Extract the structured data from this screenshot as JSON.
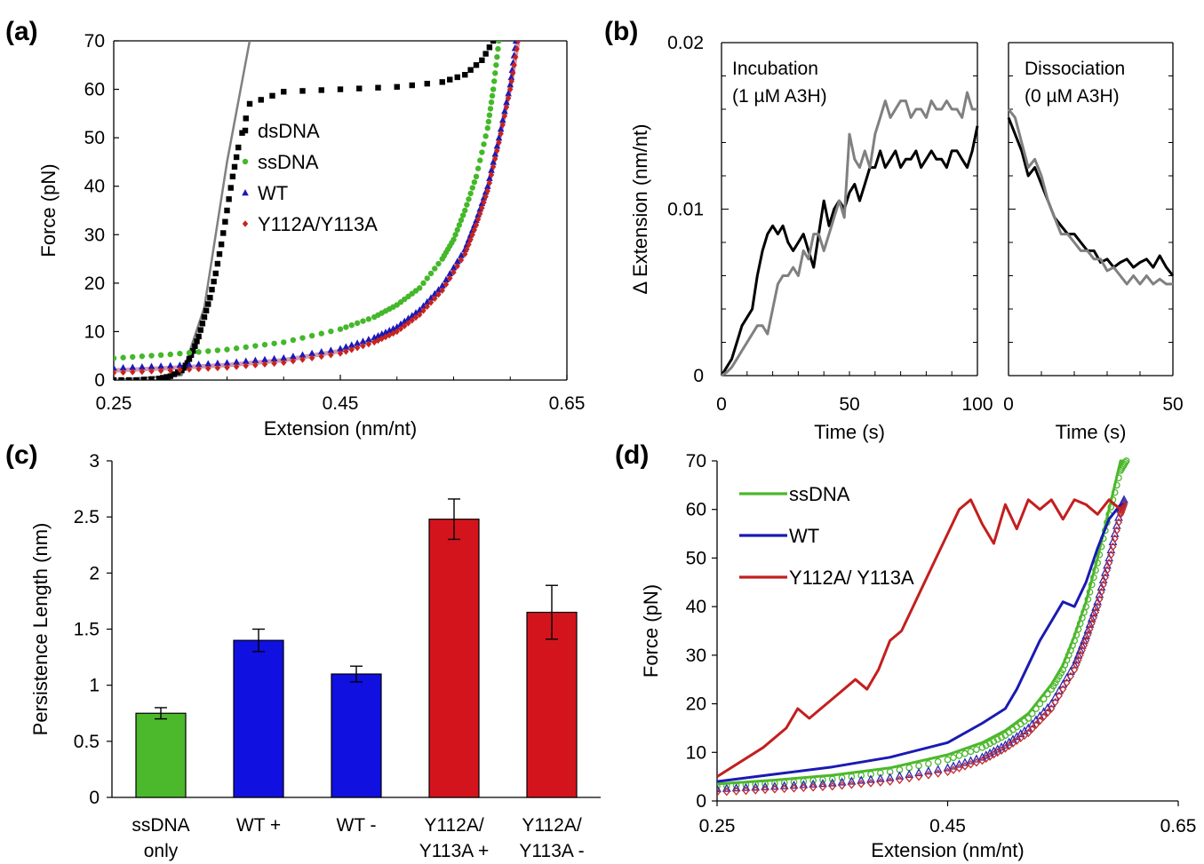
{
  "panels": {
    "a": {
      "label": "(a)"
    },
    "b": {
      "label": "(b)"
    },
    "c": {
      "label": "(c)"
    },
    "d": {
      "label": "(d)"
    }
  },
  "chart_data": [
    {
      "id": "a",
      "type": "scatter",
      "xlabel": "Extension (nm/nt)",
      "ylabel": "Force (pN)",
      "xlim": [
        0.25,
        0.65
      ],
      "ylim": [
        0,
        70
      ],
      "xticks": [
        "0.25",
        "0.45",
        "0.65"
      ],
      "yticks": [
        "0",
        "10",
        "20",
        "30",
        "40",
        "50",
        "60",
        "70"
      ],
      "legend": "center",
      "series": [
        {
          "name": "dsDNA",
          "color": "#000000",
          "marker": "square",
          "x": [
            0.25,
            0.27,
            0.29,
            0.3,
            0.31,
            0.315,
            0.32,
            0.325,
            0.33,
            0.335,
            0.34,
            0.345,
            0.35,
            0.355,
            0.36,
            0.37,
            0.4,
            0.45,
            0.5,
            0.54,
            0.56,
            0.575,
            0.585
          ],
          "y": [
            0,
            0,
            0.3,
            0.8,
            2,
            3.5,
            6,
            9,
            13,
            17,
            22,
            28,
            35,
            42,
            48,
            57,
            59.5,
            60,
            60.5,
            61.5,
            63,
            66,
            70
          ]
        },
        {
          "name": "ssDNA",
          "color": "#44b82a",
          "marker": "circle",
          "x": [
            0.25,
            0.3,
            0.35,
            0.4,
            0.45,
            0.48,
            0.5,
            0.52,
            0.54,
            0.55,
            0.56,
            0.57,
            0.58,
            0.585,
            0.59
          ],
          "y": [
            4.5,
            5.3,
            6.3,
            7.8,
            10.5,
            13,
            15.5,
            19,
            25,
            29,
            35,
            42,
            52,
            60,
            70
          ]
        },
        {
          "name": "WT",
          "color": "#1a1ab8",
          "marker": "triangle",
          "x": [
            0.25,
            0.3,
            0.35,
            0.4,
            0.45,
            0.48,
            0.5,
            0.52,
            0.54,
            0.56,
            0.57,
            0.58,
            0.59,
            0.6,
            0.605
          ],
          "y": [
            2.5,
            3,
            3.6,
            4.6,
            6.5,
            8.8,
            11,
            14.5,
            19.5,
            27,
            33,
            40,
            50,
            61,
            70
          ]
        },
        {
          "name": "Y112A/Y113A",
          "color": "#c8231e",
          "marker": "diamond",
          "x": [
            0.25,
            0.3,
            0.35,
            0.4,
            0.45,
            0.48,
            0.5,
            0.52,
            0.54,
            0.56,
            0.57,
            0.58,
            0.59,
            0.6,
            0.607
          ],
          "y": [
            1.5,
            2,
            2.6,
            3.6,
            5.5,
            7.8,
            10,
            13.5,
            18.5,
            26,
            32,
            39,
            49,
            60,
            70
          ]
        }
      ],
      "fits": [
        {
          "color": "#808080",
          "x": [
            0.25,
            0.31,
            0.33,
            0.35,
            0.37
          ],
          "y": [
            0,
            1,
            15,
            45,
            70
          ]
        },
        {
          "color": "#d59bb0",
          "x": [
            0.25,
            0.3,
            0.35,
            0.4,
            0.45,
            0.48,
            0.5,
            0.52,
            0.54,
            0.56,
            0.57,
            0.58,
            0.59,
            0.6,
            0.607
          ],
          "y": [
            2,
            2.5,
            3.1,
            4.1,
            6,
            8.3,
            10.5,
            14,
            19,
            26.5,
            32.5,
            39.5,
            49.5,
            60.5,
            70
          ]
        }
      ]
    },
    {
      "id": "b",
      "type": "line",
      "ylabel": "Δ Extension (nm/nt)",
      "ylim": [
        0,
        0.02
      ],
      "yticks": [
        "0",
        "0.01",
        "0.02"
      ],
      "subplots": [
        {
          "annotation": [
            "Incubation",
            "(1 µM A3H)"
          ],
          "xlabel": "Time (s)",
          "xlim": [
            0,
            100
          ],
          "xticks": [
            "0",
            "50",
            "100"
          ],
          "series": [
            {
              "color": "#000000",
              "x": [
                0,
                2,
                4,
                6,
                8,
                10,
                12,
                14,
                16,
                18,
                20,
                22,
                24,
                26,
                28,
                30,
                32,
                34,
                36,
                38,
                40,
                42,
                44,
                46,
                48,
                50,
                52,
                54,
                56,
                58,
                60,
                62,
                64,
                66,
                68,
                70,
                72,
                74,
                76,
                78,
                80,
                82,
                84,
                86,
                88,
                90,
                92,
                94,
                96,
                98,
                100
              ],
              "y": [
                0,
                0.0005,
                0.001,
                0.002,
                0.003,
                0.0035,
                0.004,
                0.006,
                0.0075,
                0.0085,
                0.009,
                0.0085,
                0.009,
                0.008,
                0.0075,
                0.008,
                0.0085,
                0.0075,
                0.0065,
                0.0085,
                0.0105,
                0.009,
                0.01,
                0.0105,
                0.01,
                0.011,
                0.0115,
                0.0105,
                0.0115,
                0.0125,
                0.0125,
                0.0135,
                0.0125,
                0.013,
                0.0135,
                0.0125,
                0.013,
                0.013,
                0.0135,
                0.0125,
                0.013,
                0.0135,
                0.013,
                0.013,
                0.0125,
                0.0135,
                0.0135,
                0.013,
                0.0125,
                0.0135,
                0.015
              ]
            },
            {
              "color": "#808080",
              "x": [
                0,
                2,
                4,
                6,
                8,
                10,
                12,
                14,
                16,
                18,
                20,
                22,
                24,
                26,
                28,
                30,
                32,
                34,
                36,
                38,
                40,
                42,
                44,
                46,
                48,
                50,
                52,
                54,
                56,
                58,
                60,
                62,
                64,
                66,
                68,
                70,
                72,
                74,
                76,
                78,
                80,
                82,
                84,
                86,
                88,
                90,
                92,
                94,
                96,
                98,
                100
              ],
              "y": [
                0,
                0.0002,
                0.0005,
                0.001,
                0.0015,
                0.002,
                0.0025,
                0.003,
                0.003,
                0.0025,
                0.004,
                0.0055,
                0.006,
                0.006,
                0.0065,
                0.006,
                0.0075,
                0.007,
                0.0085,
                0.0085,
                0.0075,
                0.0085,
                0.0095,
                0.0105,
                0.0095,
                0.0145,
                0.013,
                0.0125,
                0.0135,
                0.0125,
                0.0145,
                0.0155,
                0.0165,
                0.0155,
                0.016,
                0.0165,
                0.0165,
                0.0155,
                0.016,
                0.016,
                0.0155,
                0.0165,
                0.016,
                0.016,
                0.0165,
                0.016,
                0.016,
                0.0155,
                0.017,
                0.016,
                0.016
              ]
            }
          ]
        },
        {
          "annotation": [
            "Dissociation",
            "(0 µM A3H)"
          ],
          "xlabel": "Time (s)",
          "xlim": [
            0,
            50
          ],
          "xticks": [
            "0",
            "50"
          ],
          "series": [
            {
              "color": "#000000",
              "x": [
                0,
                2,
                4,
                6,
                8,
                10,
                12,
                14,
                16,
                18,
                20,
                22,
                24,
                26,
                28,
                30,
                32,
                34,
                36,
                38,
                40,
                42,
                44,
                46,
                48,
                50
              ],
              "y": [
                0.0155,
                0.0145,
                0.0135,
                0.012,
                0.0125,
                0.0115,
                0.0105,
                0.0095,
                0.009,
                0.0085,
                0.0085,
                0.008,
                0.0075,
                0.0075,
                0.0068,
                0.007,
                0.0065,
                0.0068,
                0.007,
                0.0065,
                0.0068,
                0.007,
                0.0065,
                0.0072,
                0.0065,
                0.006
              ]
            },
            {
              "color": "#808080",
              "x": [
                0,
                2,
                4,
                6,
                8,
                10,
                12,
                14,
                16,
                18,
                20,
                22,
                24,
                26,
                28,
                30,
                32,
                34,
                36,
                38,
                40,
                42,
                44,
                46,
                48,
                50
              ],
              "y": [
                0.016,
                0.0155,
                0.014,
                0.0125,
                0.013,
                0.012,
                0.0105,
                0.0095,
                0.0085,
                0.0085,
                0.008,
                0.0075,
                0.0075,
                0.007,
                0.007,
                0.0063,
                0.0065,
                0.006,
                0.0055,
                0.006,
                0.0055,
                0.006,
                0.0055,
                0.0058,
                0.0055,
                0.0055
              ]
            }
          ]
        }
      ]
    },
    {
      "id": "c",
      "type": "bar",
      "ylabel": "Persistence Length (nm)",
      "ylim": [
        0,
        3
      ],
      "yticks": [
        "0",
        "0.5",
        "1",
        "1.5",
        "2",
        "2.5",
        "3"
      ],
      "categories": [
        [
          "ssDNA",
          "only"
        ],
        [
          "WT +"
        ],
        [
          "WT -"
        ],
        [
          "Y112A/",
          "Y113A +"
        ],
        [
          "Y112A/",
          "Y113A -"
        ]
      ],
      "values": [
        0.75,
        1.4,
        1.1,
        2.48,
        1.65
      ],
      "errors": [
        0.05,
        0.1,
        0.07,
        0.18,
        0.24
      ],
      "colors": [
        "#4cb82c",
        "#1010e0",
        "#1010e0",
        "#d4141c",
        "#d4141c"
      ]
    },
    {
      "id": "d",
      "type": "line",
      "xlabel": "Extension (nm/nt)",
      "ylabel": "Force (pN)",
      "xlim": [
        0.25,
        0.65
      ],
      "ylim": [
        0,
        70
      ],
      "xticks": [
        "0.25",
        "0.45",
        "0.65"
      ],
      "yticks": [
        "0",
        "10",
        "20",
        "30",
        "40",
        "50",
        "60",
        "70"
      ],
      "legend": "top-left",
      "series": [
        {
          "name": "ssDNA",
          "color": "#4cb82c",
          "x": [
            0.25,
            0.3,
            0.35,
            0.4,
            0.45,
            0.48,
            0.5,
            0.52,
            0.54,
            0.55,
            0.56,
            0.57,
            0.58,
            0.59,
            0.6,
            0.603
          ],
          "y": [
            3.5,
            4.3,
            5.3,
            6.8,
            9.5,
            12,
            14.5,
            18,
            24,
            28,
            34,
            41,
            50,
            60,
            70,
            70
          ]
        },
        {
          "name": "WT",
          "color": "#1a1ab4",
          "x": [
            0.25,
            0.3,
            0.35,
            0.4,
            0.45,
            0.48,
            0.5,
            0.51,
            0.52,
            0.53,
            0.54,
            0.55,
            0.56,
            0.57,
            0.58,
            0.59,
            0.6,
            0.603
          ],
          "y": [
            4,
            5.5,
            7,
            9,
            12,
            16,
            19,
            23,
            28,
            33,
            37,
            41,
            40,
            45,
            52,
            58,
            61,
            61
          ]
        },
        {
          "name": "Y112A/ Y113A",
          "color": "#c41e1e",
          "x": [
            0.25,
            0.27,
            0.29,
            0.31,
            0.32,
            0.33,
            0.34,
            0.35,
            0.37,
            0.38,
            0.39,
            0.4,
            0.41,
            0.42,
            0.43,
            0.44,
            0.45,
            0.46,
            0.47,
            0.48,
            0.49,
            0.5,
            0.51,
            0.52,
            0.53,
            0.54,
            0.55,
            0.56,
            0.57,
            0.58,
            0.59,
            0.6,
            0.603
          ],
          "y": [
            5,
            8,
            11,
            15,
            19,
            17,
            19,
            21,
            25,
            23,
            27,
            33,
            35,
            40,
            45,
            50,
            55,
            60,
            62,
            57,
            53,
            61,
            56,
            62,
            60,
            62,
            58,
            62,
            61,
            59,
            62,
            60,
            61
          ]
        }
      ],
      "markers": [
        {
          "color": "#4cb82c",
          "marker": "circle",
          "x": [
            0.25,
            0.3,
            0.35,
            0.4,
            0.45,
            0.48,
            0.5,
            0.52,
            0.54,
            0.55,
            0.56,
            0.57,
            0.58,
            0.59,
            0.6,
            0.605
          ],
          "y": [
            3,
            3.6,
            4.5,
            6,
            8.5,
            11,
            13.5,
            17,
            23,
            27,
            33,
            40,
            49,
            59,
            68,
            70
          ]
        },
        {
          "color": "#2a2ab8",
          "marker": "triangle",
          "x": [
            0.25,
            0.3,
            0.35,
            0.4,
            0.45,
            0.48,
            0.5,
            0.52,
            0.54,
            0.56,
            0.57,
            0.58,
            0.59,
            0.6,
            0.603
          ],
          "y": [
            2.5,
            3,
            3.7,
            4.8,
            6.8,
            9,
            11.5,
            15,
            20,
            28,
            34,
            41,
            50,
            60,
            62
          ]
        },
        {
          "color": "#c42b2b",
          "marker": "diamond",
          "x": [
            0.25,
            0.3,
            0.35,
            0.4,
            0.45,
            0.48,
            0.5,
            0.52,
            0.54,
            0.56,
            0.57,
            0.58,
            0.59,
            0.6,
            0.603
          ],
          "y": [
            1.8,
            2.4,
            3,
            4,
            6,
            8.3,
            10.8,
            14,
            19,
            27,
            33,
            40,
            49,
            59,
            61
          ]
        }
      ]
    }
  ]
}
